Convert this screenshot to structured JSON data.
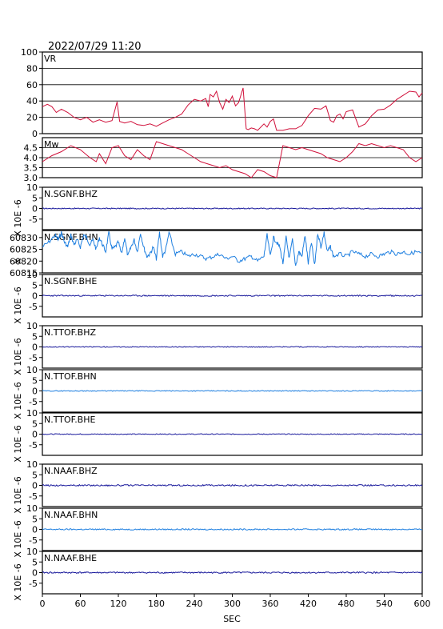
{
  "header": {
    "datetime": "2022/07/29  11:20"
  },
  "x_axis": {
    "label": "SEC",
    "ticks": [
      0,
      60,
      120,
      180,
      240,
      300,
      360,
      420,
      480,
      540,
      600
    ],
    "range": [
      0,
      600
    ]
  },
  "chart_data": [
    {
      "type": "line",
      "label": "VR",
      "color": "#d0103a",
      "ylim": [
        0,
        100
      ],
      "yticks": [
        0,
        20,
        40,
        60,
        80,
        100
      ],
      "ylabel": "",
      "grid": true,
      "x": [
        0,
        8,
        15,
        22,
        30,
        40,
        50,
        60,
        70,
        80,
        90,
        100,
        110,
        115,
        118,
        122,
        130,
        140,
        150,
        160,
        170,
        180,
        190,
        200,
        210,
        220,
        230,
        240,
        250,
        258,
        262,
        265,
        270,
        275,
        280,
        285,
        290,
        295,
        300,
        305,
        310,
        317,
        322,
        325,
        330,
        335,
        340,
        350,
        355,
        360,
        365,
        370,
        380,
        390,
        400,
        410,
        420,
        430,
        440,
        448,
        455,
        460,
        465,
        470,
        475,
        480,
        490,
        500,
        510,
        520,
        530,
        540,
        550,
        560,
        570,
        580,
        590,
        595,
        600
      ],
      "values": [
        33,
        36,
        33,
        26,
        30,
        26,
        20,
        17,
        20,
        14,
        17,
        14,
        16,
        30,
        39,
        15,
        13,
        15,
        11,
        10,
        12,
        9,
        13,
        17,
        20,
        24,
        35,
        42,
        40,
        43,
        33,
        48,
        45,
        52,
        38,
        30,
        42,
        38,
        46,
        34,
        38,
        56,
        6,
        5,
        7,
        6,
        4,
        12,
        8,
        15,
        18,
        4,
        4,
        6,
        6,
        10,
        22,
        31,
        30,
        34,
        16,
        14,
        22,
        24,
        18,
        27,
        29,
        8,
        12,
        22,
        29,
        30,
        35,
        42,
        47,
        52,
        51,
        45,
        50
      ]
    },
    {
      "type": "line",
      "label": "Mw",
      "color": "#d0103a",
      "ylim": [
        3.0,
        5.0
      ],
      "yticks": [
        3.0,
        3.5,
        4.0,
        4.5
      ],
      "ylabel": "",
      "grid": true,
      "x": [
        0,
        15,
        30,
        45,
        60,
        75,
        85,
        90,
        100,
        110,
        120,
        130,
        140,
        150,
        160,
        170,
        180,
        190,
        200,
        210,
        220,
        230,
        240,
        250,
        260,
        270,
        280,
        290,
        300,
        310,
        320,
        330,
        340,
        350,
        360,
        370,
        380,
        390,
        400,
        410,
        420,
        430,
        440,
        450,
        460,
        470,
        480,
        490,
        500,
        510,
        520,
        530,
        540,
        550,
        560,
        570,
        580,
        590,
        600
      ],
      "values": [
        3.8,
        4.1,
        4.3,
        4.6,
        4.4,
        4.0,
        3.8,
        4.2,
        3.7,
        4.5,
        4.6,
        4.1,
        3.9,
        4.4,
        4.1,
        3.9,
        4.8,
        4.7,
        4.6,
        4.5,
        4.4,
        4.2,
        4.0,
        3.8,
        3.7,
        3.6,
        3.5,
        3.6,
        3.4,
        3.3,
        3.2,
        3.0,
        3.4,
        3.3,
        3.1,
        3.0,
        4.6,
        4.5,
        4.4,
        4.5,
        4.4,
        4.3,
        4.2,
        4.0,
        3.9,
        3.8,
        4.0,
        4.3,
        4.7,
        4.6,
        4.7,
        4.6,
        4.5,
        4.6,
        4.5,
        4.4,
        4.0,
        3.8,
        4.0
      ]
    },
    {
      "type": "line",
      "label": "N.SGNF.BHZ",
      "color": "#1a1a9c",
      "ylim": [
        -10,
        10
      ],
      "yticks": [
        -5,
        0,
        5,
        10
      ],
      "ylabel": "X 10E -6",
      "amplitude": 0.25,
      "offset": 0
    },
    {
      "type": "line",
      "label": "N.SGNF.BHN",
      "color": "#1e7fe0",
      "ylim": [
        60815,
        60833
      ],
      "yticks": [
        60815,
        60820,
        60825,
        60830
      ],
      "ylabel": "X",
      "x": [
        0,
        10,
        20,
        25,
        30,
        35,
        40,
        45,
        50,
        55,
        60,
        65,
        70,
        75,
        80,
        85,
        90,
        95,
        100,
        105,
        110,
        115,
        120,
        125,
        130,
        135,
        140,
        145,
        150,
        155,
        160,
        165,
        170,
        175,
        180,
        185,
        190,
        195,
        200,
        210,
        220,
        230,
        240,
        250,
        260,
        270,
        280,
        290,
        300,
        310,
        320,
        330,
        340,
        350,
        355,
        360,
        365,
        370,
        375,
        380,
        385,
        390,
        395,
        400,
        405,
        410,
        415,
        420,
        425,
        430,
        435,
        440,
        445,
        450,
        455,
        460,
        470,
        480,
        490,
        500,
        510,
        520,
        530,
        540,
        550,
        560,
        570,
        580,
        590,
        600
      ],
      "values": [
        60826,
        60828,
        60831,
        60829,
        60832,
        60828,
        60826,
        60831,
        60827,
        60829,
        60826,
        60831,
        60830,
        60827,
        60829,
        60825,
        60830,
        60827,
        60824,
        60832,
        60825,
        60826,
        60828,
        60823,
        60830,
        60822,
        60826,
        60829,
        60824,
        60832,
        60826,
        60822,
        60823,
        60826,
        60821,
        60832,
        60822,
        60825,
        60832,
        60823,
        60824,
        60822,
        60823,
        60822,
        60821,
        60822,
        60823,
        60821,
        60822,
        60820,
        60821,
        60822,
        60820,
        60822,
        60831,
        60822,
        60830,
        60828,
        60826,
        60819,
        60830,
        60821,
        60829,
        60818,
        60824,
        60822,
        60831,
        60819,
        60828,
        60818,
        60832,
        60826,
        60832,
        60824,
        60826,
        60822,
        60823,
        60822,
        60824,
        60823,
        60822,
        60823,
        60822,
        60823,
        60824,
        60823,
        60824,
        60823,
        60824,
        60823
      ]
    },
    {
      "type": "line",
      "label": "N.SGNF.BHE",
      "color": "#1a1a9c",
      "ylim": [
        -10,
        10
      ],
      "yticks": [
        -5,
        0,
        5,
        10
      ],
      "ylabel": "X 10E -6",
      "amplitude": 0.3,
      "offset": 0
    },
    {
      "type": "line",
      "label": "N.TTOF.BHZ",
      "color": "#1a1a9c",
      "ylim": [
        -10,
        10
      ],
      "yticks": [
        -5,
        0,
        5,
        10
      ],
      "ylabel": "X 10E -6",
      "amplitude": 0.2,
      "offset": 0
    },
    {
      "type": "line",
      "label": "N.TTOF.BHN",
      "color": "#1e7fe0",
      "ylim": [
        -10,
        10
      ],
      "yticks": [
        -5,
        0,
        5,
        10
      ],
      "ylabel": "X 10E -6",
      "amplitude": 0.2,
      "offset": 0
    },
    {
      "type": "line",
      "label": "N.TTOF.BHE",
      "color": "#1a1a9c",
      "ylim": [
        -10,
        10
      ],
      "yticks": [
        -5,
        0,
        5,
        10
      ],
      "ylabel": "X 10E -6",
      "amplitude": 0.2,
      "offset": 0
    },
    {
      "type": "line",
      "label": "N.NAAF.BHZ",
      "color": "#1a1a9c",
      "ylim": [
        -10,
        10
      ],
      "yticks": [
        -5,
        0,
        5,
        10
      ],
      "ylabel": "X 10E -6",
      "amplitude": 0.35,
      "offset": 0
    },
    {
      "type": "line",
      "label": "N.NAAF.BHN",
      "color": "#1e7fe0",
      "ylim": [
        -10,
        10
      ],
      "yticks": [
        -5,
        0,
        5,
        10
      ],
      "ylabel": "X 10E -6",
      "amplitude": 0.3,
      "offset": 0
    },
    {
      "type": "line",
      "label": "N.NAAF.BHE",
      "color": "#1a1a9c",
      "ylim": [
        -10,
        10
      ],
      "yticks": [
        -5,
        0,
        5,
        10
      ],
      "ylabel": "X 10E -6",
      "amplitude": 0.35,
      "offset": 0
    }
  ]
}
